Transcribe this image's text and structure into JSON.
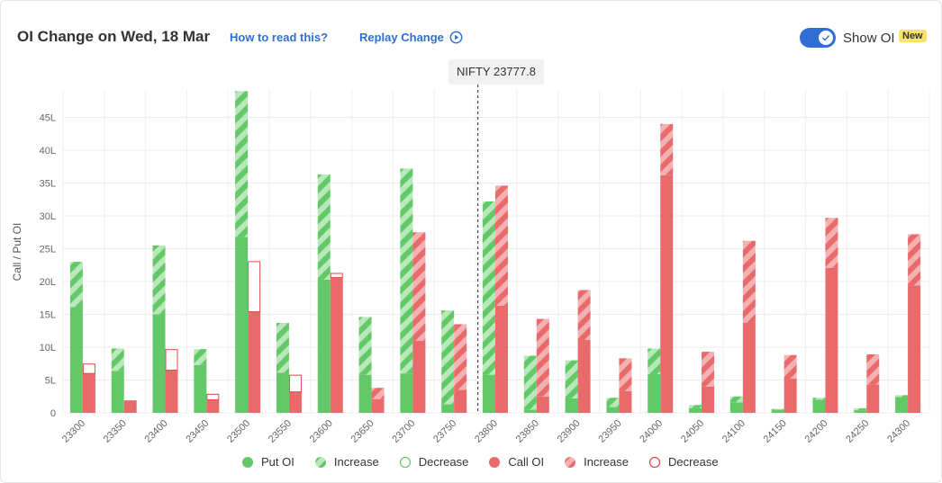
{
  "header": {
    "title": "OI Change on Wed, 18 Mar",
    "how_to_read": "How to read this?",
    "replay": "Replay Change",
    "toggle_label": "Show OI",
    "new_badge": "New"
  },
  "spot": {
    "label": "NIFTY 23777.8",
    "value": 23777.8
  },
  "chart_data": {
    "type": "bar",
    "ylabel": "Call / Put OI",
    "ylim": [
      0,
      50
    ],
    "yticks": [
      0,
      5,
      10,
      15,
      20,
      25,
      30,
      35,
      40,
      45
    ],
    "ytick_labels": [
      "0",
      "5L",
      "10L",
      "15L",
      "20L",
      "25L",
      "30L",
      "35L",
      "40L",
      "45L"
    ],
    "categories": [
      "23300",
      "23350",
      "23400",
      "23450",
      "23500",
      "23550",
      "23600",
      "23650",
      "23700",
      "23750",
      "23800",
      "23850",
      "23900",
      "23950",
      "24000",
      "24050",
      "24100",
      "24150",
      "24200",
      "24250",
      "24300"
    ],
    "legend_position": "bottom",
    "legend": [
      "Put OI",
      "Increase",
      "Decrease",
      "Call OI",
      "Increase",
      "Decrease"
    ],
    "colors": {
      "put": "#63c968",
      "put_increase": "#b9e8bb",
      "call": "#e96a6a",
      "call_increase": "#f4b1b1",
      "call_decrease_border": "#e04a4a",
      "put_decrease_border": "#63c968"
    },
    "series": [
      {
        "name": "Put OI",
        "oi": [
          23.0,
          9.8,
          25.5,
          9.7,
          49.0,
          13.7,
          36.3,
          14.6,
          37.2,
          15.6,
          32.2,
          8.7,
          8.0,
          2.3,
          9.8,
          1.2,
          2.5,
          0.6,
          2.3,
          0.7,
          2.7
        ],
        "increase": [
          6.9,
          3.4,
          10.5,
          2.4,
          22.2,
          7.6,
          16.0,
          8.8,
          31.2,
          14.3,
          26.4,
          8.2,
          5.8,
          1.4,
          3.9,
          0.5,
          0.9,
          0.1,
          0.3,
          0.3,
          0.3
        ],
        "decrease": [
          0,
          0,
          0,
          0,
          0,
          0,
          0,
          0,
          0,
          0,
          0,
          0,
          0,
          0,
          0,
          0,
          0,
          0,
          0,
          0,
          0
        ]
      },
      {
        "name": "Call OI",
        "oi": [
          6.0,
          1.9,
          6.5,
          2.0,
          15.4,
          3.2,
          20.6,
          3.8,
          27.5,
          13.5,
          34.6,
          14.3,
          18.7,
          8.3,
          44.0,
          9.3,
          26.2,
          8.8,
          29.7,
          8.9,
          27.2
        ],
        "increase": [
          0,
          0,
          0,
          0,
          0,
          0,
          0,
          1.7,
          16.5,
          10.0,
          18.3,
          11.8,
          7.6,
          5.0,
          7.8,
          5.3,
          12.5,
          3.6,
          7.6,
          4.6,
          7.8
        ],
        "decrease": [
          1.5,
          0,
          3.2,
          0.9,
          7.7,
          2.6,
          0.7,
          0,
          0,
          0,
          0,
          0,
          0,
          0,
          0,
          0,
          0,
          0,
          0,
          0,
          0
        ]
      }
    ]
  }
}
